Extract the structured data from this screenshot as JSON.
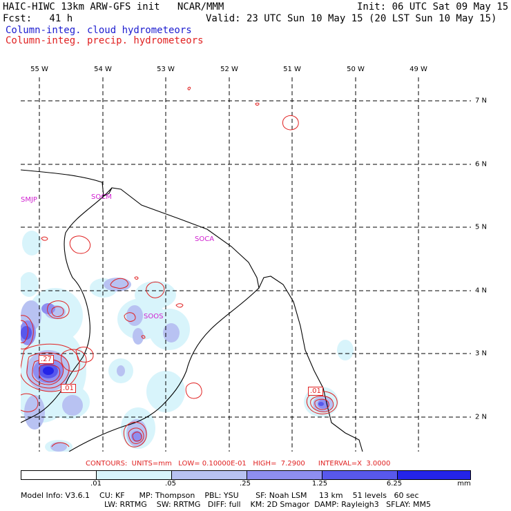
{
  "header": {
    "model_title": "HAIC-HIWC 13km ARW-GFS init   NCAR/MMM",
    "init": "Init: 06 UTC Sat 09 May 15",
    "fcst": "Fcst:   41 h",
    "valid": "Valid: 23 UTC Sun 10 May 15 (20 LST Sun 10 May 15)",
    "field_cloud": "Column-integ. cloud hydrometeors",
    "field_precip": "Column-integ. precip. hydrometeors"
  },
  "map": {
    "lon_labels": [
      "55 W",
      "54 W",
      "53 W",
      "52 W",
      "51 W",
      "50 W",
      "49 W"
    ],
    "lat_labels": [
      "7 N",
      "6 N",
      "5 N",
      "4 N",
      "3 N",
      "2 N"
    ],
    "stations": [
      "SMJP",
      "SOCM",
      "SOCA",
      "SOOS"
    ],
    "contour_box_labels": [
      ".27",
      ".01",
      ".01"
    ]
  },
  "contours_line": "CONTOURS:  UNITS=mm   LOW= 0.10000E-01   HIGH=  7.2900      INTERVAL=X  3.0000",
  "colorbar": {
    "ticks": [
      ".01",
      ".05",
      ".25",
      "1.25",
      "6.25"
    ],
    "units": "mm",
    "colors": [
      "#ffffff",
      "#d8f4fb",
      "#b8c2f2",
      "#8e8ef0",
      "#5858ec",
      "#2424e8"
    ]
  },
  "footer": {
    "line1": "Model Info: V3.6.1    CU: KF      MP: Thompson    PBL: YSU       SF: Noah LSM     13 km    51 levels   60 sec",
    "line2": "LW: RRTMG    SW: RRTMG   DIFF: full    KM: 2D Smagor  DAMP: Rayleigh3   SFLAY: MM5"
  }
}
